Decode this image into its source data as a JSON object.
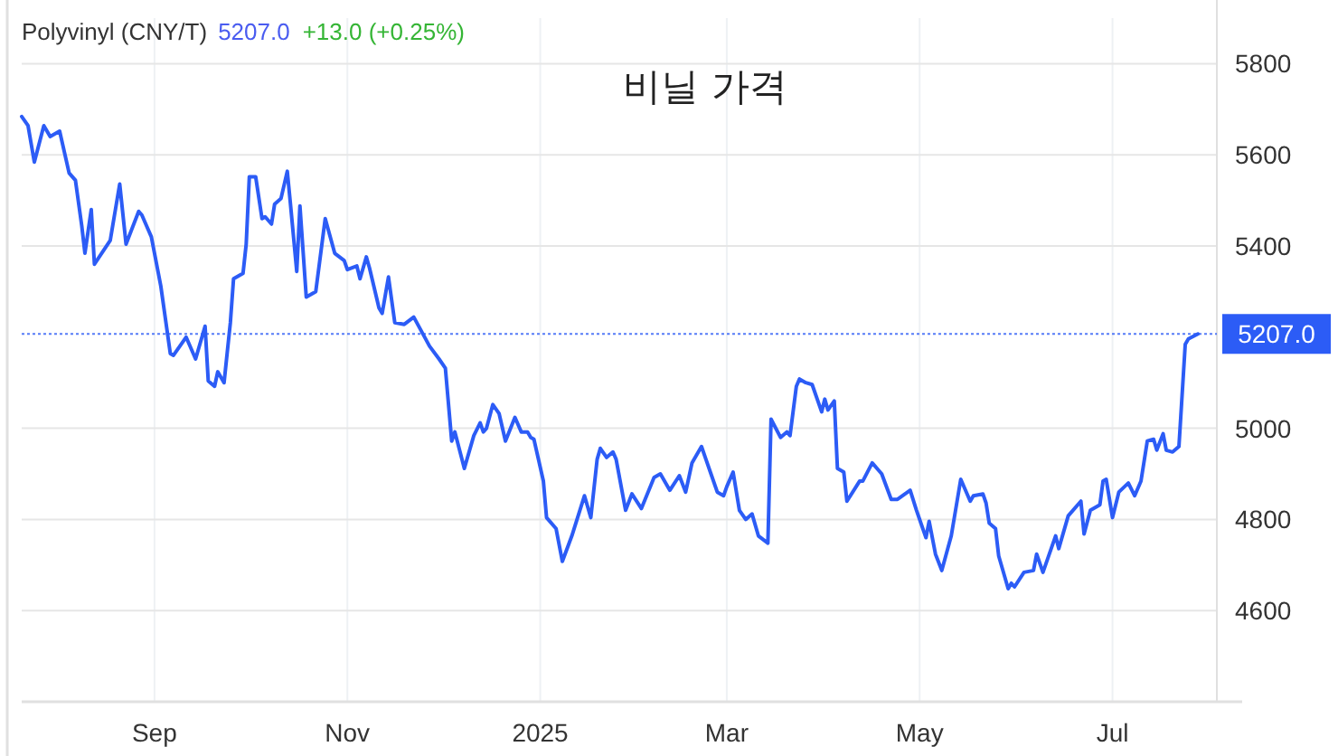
{
  "chart_data": {
    "type": "line",
    "title": "비닐 가격",
    "subtitle": "Polyvinyl (CNY/T)",
    "annotations": [
      "5207.0",
      "+13.0 (+0.25%)"
    ],
    "x": [
      "2024-07-21",
      "2024-07-23",
      "2024-07-25",
      "2024-07-28",
      "2024-07-30",
      "2024-08-02",
      "2024-08-05",
      "2024-08-07",
      "2024-08-09",
      "2024-08-10",
      "2024-08-12",
      "2024-08-13",
      "2024-08-18",
      "2024-08-21",
      "2024-08-23",
      "2024-08-27",
      "2024-08-28",
      "2024-08-31",
      "2024-09-03",
      "2024-09-06",
      "2024-09-07",
      "2024-09-11",
      "2024-09-14",
      "2024-09-17",
      "2024-09-18",
      "2024-09-20",
      "2024-09-21",
      "2024-09-23",
      "2024-09-25",
      "2024-09-26",
      "2024-09-29",
      "2024-09-30",
      "2024-10-01",
      "2024-10-03",
      "2024-10-05",
      "2024-10-06",
      "2024-10-08",
      "2024-10-09",
      "2024-10-11",
      "2024-10-13",
      "2024-10-14",
      "2024-10-16",
      "2024-10-17",
      "2024-10-19",
      "2024-10-22",
      "2024-10-25",
      "2024-10-28",
      "2024-10-31",
      "2024-11-01",
      "2024-11-04",
      "2024-11-05",
      "2024-11-07",
      "2024-11-08",
      "2024-11-11",
      "2024-11-12",
      "2024-11-14",
      "2024-11-16",
      "2024-11-19",
      "2024-11-22",
      "2024-11-27",
      "2024-11-30",
      "2024-12-02",
      "2024-12-04",
      "2024-12-05",
      "2024-12-08",
      "2024-12-11",
      "2024-12-13",
      "2024-12-14",
      "2024-12-15",
      "2024-12-17",
      "2024-12-19",
      "2024-12-21",
      "2024-12-24",
      "2024-12-26",
      "2024-12-28",
      "2024-12-29",
      "2024-12-30",
      "2025-01-02",
      "2025-01-03",
      "2025-01-06",
      "2025-01-08",
      "2025-01-11",
      "2025-01-15",
      "2025-01-17",
      "2025-01-19",
      "2025-01-20",
      "2025-01-22",
      "2025-01-24",
      "2025-01-25",
      "2025-01-28",
      "2025-01-30",
      "2025-02-02",
      "2025-02-06",
      "2025-02-08",
      "2025-02-11",
      "2025-02-14",
      "2025-02-16",
      "2025-02-18",
      "2025-02-21",
      "2025-02-24",
      "2025-02-26",
      "2025-02-28",
      "2025-03-01",
      "2025-03-03",
      "2025-03-05",
      "2025-03-07",
      "2025-03-09",
      "2025-03-11",
      "2025-03-14",
      "2025-03-15",
      "2025-03-18",
      "2025-03-20",
      "2025-03-21",
      "2025-03-23",
      "2025-03-24",
      "2025-03-26",
      "2025-03-28",
      "2025-03-31",
      "2025-04-01",
      "2025-04-02",
      "2025-04-04",
      "2025-04-05",
      "2025-04-07",
      "2025-04-08",
      "2025-04-12",
      "2025-04-13",
      "2025-04-16",
      "2025-04-18",
      "2025-04-19",
      "2025-04-22",
      "2025-04-24",
      "2025-04-28",
      "2025-04-30",
      "2025-05-03",
      "2025-05-04",
      "2025-05-06",
      "2025-05-08",
      "2025-05-11",
      "2025-05-14",
      "2025-05-17",
      "2025-05-18",
      "2025-05-21",
      "2025-05-22",
      "2025-05-23",
      "2025-05-25",
      "2025-05-26",
      "2025-05-29",
      "2025-05-30",
      "2025-05-31",
      "2025-06-03",
      "2025-06-06",
      "2025-06-07",
      "2025-06-09",
      "2025-06-13",
      "2025-06-14",
      "2025-06-17",
      "2025-06-21",
      "2025-06-22",
      "2025-06-24",
      "2025-06-27",
      "2025-06-28",
      "2025-06-29",
      "2025-07-01",
      "2025-07-03",
      "2025-07-06",
      "2025-07-08",
      "2025-07-10",
      "2025-07-12",
      "2025-07-14",
      "2025-07-15",
      "2025-07-17",
      "2025-07-18",
      "2025-07-20",
      "2025-07-22",
      "2025-07-24",
      "2025-07-25",
      "2025-07-28"
    ],
    "series": [
      {
        "color": "#2c5cf6",
        "values": [
          5684,
          5664,
          5584,
          5664,
          5640,
          5652,
          5560,
          5544,
          5444,
          5384,
          5480,
          5360,
          5412,
          5536,
          5404,
          5476,
          5468,
          5420,
          5312,
          5164,
          5160,
          5200,
          5152,
          5224,
          5104,
          5092,
          5124,
          5100,
          5232,
          5328,
          5340,
          5404,
          5552,
          5552,
          5460,
          5464,
          5448,
          5492,
          5504,
          5564,
          5492,
          5344,
          5488,
          5288,
          5300,
          5460,
          5384,
          5368,
          5348,
          5356,
          5328,
          5376,
          5352,
          5264,
          5252,
          5332,
          5232,
          5228,
          5244,
          5180,
          5152,
          5132,
          4972,
          4992,
          4912,
          4984,
          5012,
          4992,
          5000,
          5052,
          5032,
          4972,
          5024,
          4992,
          4992,
          4980,
          4976,
          4884,
          4804,
          4780,
          4708,
          4764,
          4852,
          4804,
          4932,
          4956,
          4936,
          4948,
          4932,
          4820,
          4856,
          4824,
          4892,
          4900,
          4864,
          4896,
          4860,
          4924,
          4960,
          4900,
          4860,
          4852,
          4872,
          4904,
          4820,
          4800,
          4812,
          4764,
          4748,
          5020,
          4980,
          4992,
          4984,
          5092,
          5108,
          5100,
          5096,
          5036,
          5064,
          5040,
          5060,
          4912,
          4904,
          4840,
          4884,
          4884,
          4924,
          4908,
          4900,
          4844,
          4844,
          4864,
          4820,
          4760,
          4796,
          4724,
          4688,
          4764,
          4888,
          4840,
          4852,
          4856,
          4836,
          4792,
          4780,
          4720,
          4648,
          4660,
          4652,
          4684,
          4688,
          4724,
          4684,
          4764,
          4736,
          4808,
          4840,
          4768,
          4820,
          4832,
          4884,
          4888,
          4804,
          4860,
          4880,
          4852,
          4884,
          4972,
          4976,
          4952,
          4988,
          4952,
          4948,
          4960,
          5184,
          5196,
          5207
        ]
      }
    ],
    "xlim": [
      "2024-07-21",
      "2025-08-03"
    ],
    "ylim": [
      4400,
      5900
    ],
    "xticks": [
      {
        "value": "2024-09-01",
        "label": "Sep"
      },
      {
        "value": "2024-11-01",
        "label": "Nov"
      },
      {
        "value": "2025-01-01",
        "label": "2025"
      },
      {
        "value": "2025-03-01",
        "label": "Mar"
      },
      {
        "value": "2025-05-01",
        "label": "May"
      },
      {
        "value": "2025-07-01",
        "label": "Jul"
      }
    ],
    "yticks": [
      4600,
      4800,
      5000,
      5400,
      5600,
      5800
    ],
    "grid": true,
    "ref_lines": [
      {
        "axis": "y",
        "value": 5207,
        "label": "5207.0",
        "color": "#2c5cf6",
        "line_style": "dotted"
      }
    ]
  }
}
